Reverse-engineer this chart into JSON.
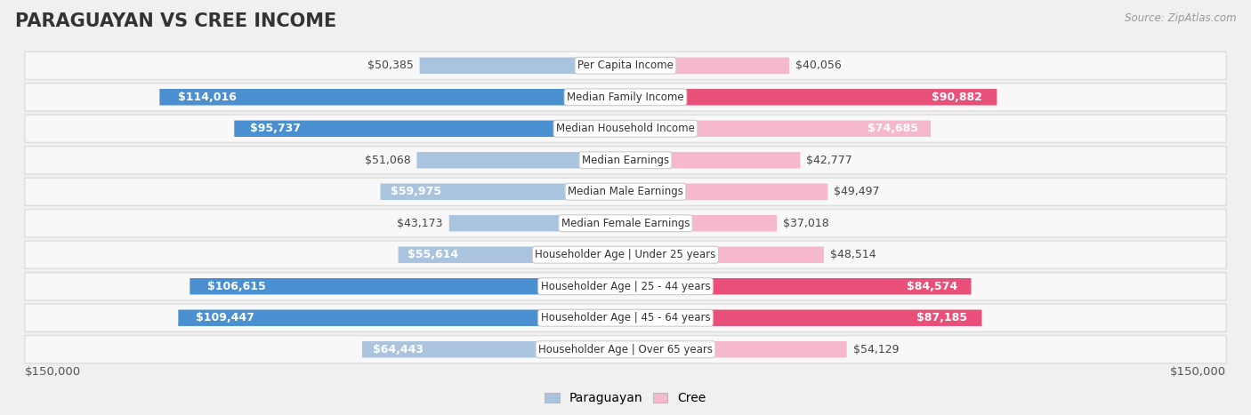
{
  "title": "PARAGUAYAN VS CREE INCOME",
  "source": "Source: ZipAtlas.com",
  "categories": [
    "Per Capita Income",
    "Median Family Income",
    "Median Household Income",
    "Median Earnings",
    "Median Male Earnings",
    "Median Female Earnings",
    "Householder Age | Under 25 years",
    "Householder Age | 25 - 44 years",
    "Householder Age | 45 - 64 years",
    "Householder Age | Over 65 years"
  ],
  "paraguayan_values": [
    50385,
    114016,
    95737,
    51068,
    59975,
    43173,
    55614,
    106615,
    109447,
    64443
  ],
  "cree_values": [
    40056,
    90882,
    74685,
    42777,
    49497,
    37018,
    48514,
    84574,
    87185,
    54129
  ],
  "paraguayan_labels": [
    "$50,385",
    "$114,016",
    "$95,737",
    "$51,068",
    "$59,975",
    "$43,173",
    "$55,614",
    "$106,615",
    "$109,447",
    "$64,443"
  ],
  "cree_labels": [
    "$40,056",
    "$90,882",
    "$74,685",
    "$42,777",
    "$49,497",
    "$37,018",
    "$48,514",
    "$84,574",
    "$87,185",
    "$54,129"
  ],
  "paraguayan_color_light": "#aac4e0",
  "paraguayan_color_dark": "#4a90d0",
  "cree_color_light": "#f5b8cc",
  "cree_color_dark": "#e8507a",
  "dark_threshold": 80000,
  "max_value": 150000,
  "background_color": "#f0f0f0",
  "row_bg_color": "#f8f8f8",
  "row_border_color": "#dddddd",
  "title_fontsize": 15,
  "label_fontsize": 9,
  "legend_fontsize": 10,
  "inside_label_threshold": 55000
}
